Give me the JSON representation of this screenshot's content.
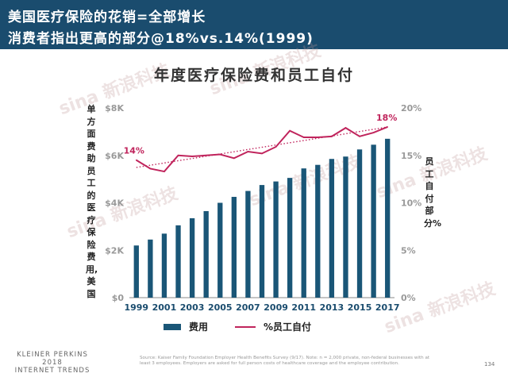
{
  "header": {
    "line1": "美国医疗保险的花销=全部增长",
    "line2": "消费者指出更高的部分@18%vs.14%(1999)"
  },
  "chart_data": {
    "type": "bar",
    "title": "年度医疗保险费和员工自付",
    "x": [
      1999,
      2000,
      2001,
      2002,
      2003,
      2004,
      2005,
      2006,
      2007,
      2008,
      2009,
      2010,
      2011,
      2012,
      2013,
      2014,
      2015,
      2016,
      2017
    ],
    "x_tick_labels": [
      "1999",
      "2001",
      "2003",
      "2005",
      "2007",
      "2009",
      "2011",
      "2013",
      "2015",
      "2017"
    ],
    "ylabel_left": "单方面费助员工的医疗保险费用,美国",
    "ylabel_right": "员工自付部分%",
    "y_left_ticks": [
      "$0",
      "$2K",
      "$4K",
      "$6K",
      "$8K"
    ],
    "y_left_lim": [
      0,
      8000
    ],
    "y_right_ticks": [
      "0%",
      "5%",
      "10%",
      "15%",
      "20%"
    ],
    "y_right_lim": [
      0,
      20
    ],
    "series": [
      {
        "name": "费用",
        "type": "bar",
        "color": "#1a5677",
        "values": [
          2200,
          2450,
          2700,
          3050,
          3350,
          3650,
          4000,
          4250,
          4500,
          4750,
          4900,
          5050,
          5450,
          5600,
          5850,
          5950,
          6250,
          6450,
          6700
        ]
      },
      {
        "name": "%员工自付",
        "type": "line",
        "color": "#c0245c",
        "values": [
          14.5,
          13.6,
          13.3,
          15.0,
          14.9,
          15.0,
          15.1,
          14.7,
          15.4,
          15.2,
          15.9,
          17.6,
          16.9,
          16.9,
          17.0,
          17.9,
          17.0,
          17.4,
          18.0
        ]
      }
    ],
    "annotations": [
      {
        "label": "14%",
        "x": 1999,
        "value": 14.5
      },
      {
        "label": "18%",
        "x": 2017,
        "value": 18.0
      }
    ],
    "trendline": {
      "color": "#c0245c",
      "style": "dotted"
    },
    "grid": false,
    "legend": "bottom"
  },
  "legend": {
    "bar_label": "费用",
    "line_label": "%员工自付"
  },
  "footer": {
    "brand1": "KLEINER PERKINS",
    "brand2": "2018",
    "brand3": "INTERNET TRENDS",
    "source": "Source: Kaiser Family Foundation Employer Health Benefits Survey (9/17). Note: n = 2,000 private, non-federal businesses with at least 3 employees. Employers are asked for full person costs of healthcare coverage and the employee contribution.",
    "page": "134"
  },
  "watermark": "sina 新浪科技"
}
